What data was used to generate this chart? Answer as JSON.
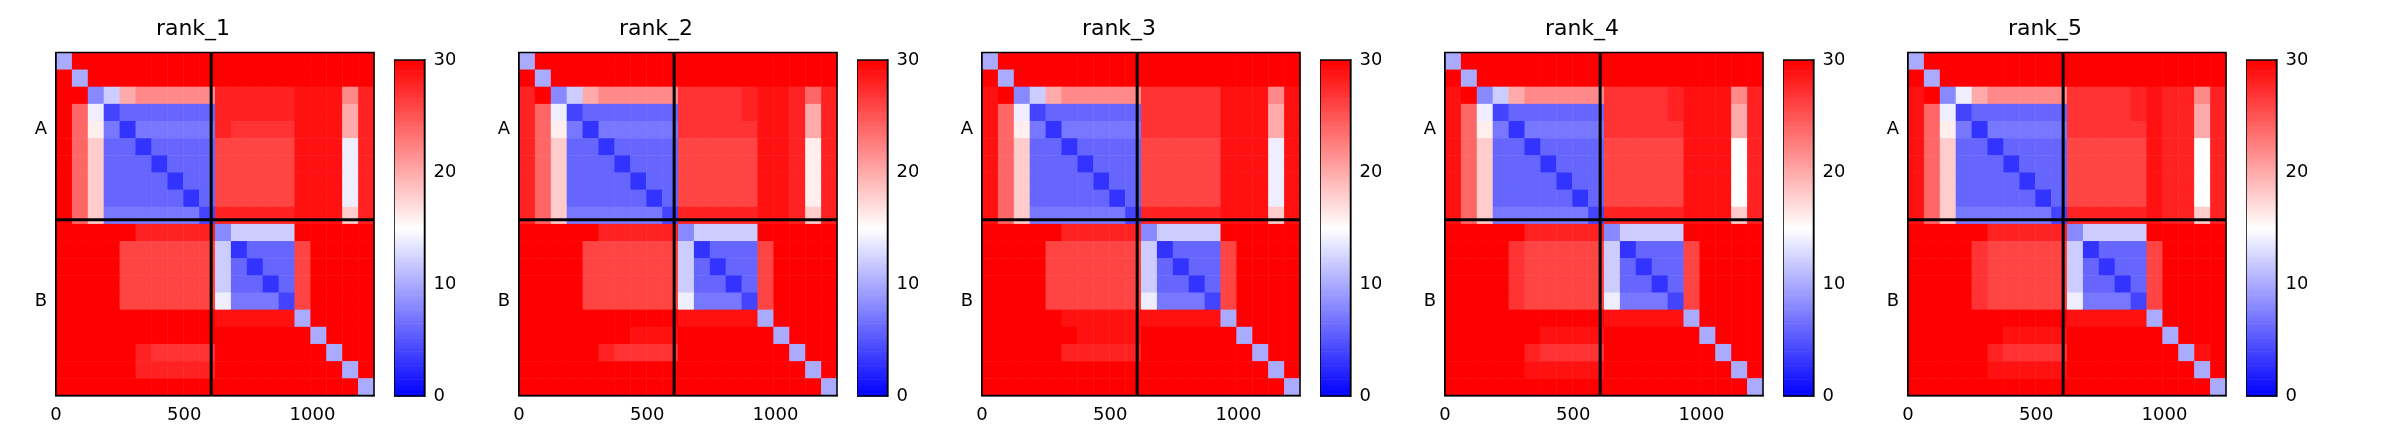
{
  "chart_data": [
    {
      "type": "heatmap",
      "title": "rank_1",
      "x": [
        31,
        93,
        155,
        217,
        279,
        341,
        403,
        465,
        527,
        589,
        651,
        713,
        775,
        837,
        899,
        961,
        1023,
        1085,
        1147,
        1209
      ],
      "xlim": [
        0,
        1240
      ],
      "xticks": [
        0,
        500,
        1000
      ],
      "y_categories": [
        null,
        null,
        null,
        null,
        "A",
        null,
        null,
        null,
        null,
        null,
        null,
        null,
        null,
        null,
        "B",
        null,
        null,
        null,
        null,
        null
      ],
      "clim": [
        0,
        30
      ],
      "cticks": [
        0,
        10,
        20,
        30
      ],
      "ref_lines": [
        {
          "axis": "x",
          "value": 605,
          "color": "#000000"
        }
      ],
      "cells": [
        [
          10,
          30,
          30,
          30,
          30,
          30,
          30,
          30,
          30,
          30,
          30,
          30,
          30,
          30,
          30,
          30,
          30,
          30,
          30,
          30
        ],
        [
          30,
          10,
          30,
          30,
          30,
          30,
          30,
          30,
          30,
          30,
          30,
          30,
          30,
          30,
          30,
          30,
          30,
          30,
          30,
          30
        ],
        [
          30,
          30,
          8,
          12,
          20,
          22,
          22,
          22,
          22,
          22,
          28,
          28,
          28,
          28,
          28,
          29,
          29,
          29,
          22,
          28
        ],
        [
          30,
          24,
          14,
          4,
          6,
          6,
          6,
          6,
          6,
          6,
          28,
          28,
          28,
          28,
          28,
          29,
          29,
          29,
          20,
          28
        ],
        [
          30,
          24,
          16,
          7,
          3,
          7,
          7,
          7,
          7,
          7,
          28,
          27,
          27,
          27,
          27,
          29,
          29,
          29,
          20,
          28
        ],
        [
          30,
          24,
          18,
          6,
          6,
          3,
          6,
          6,
          6,
          6,
          26,
          26,
          26,
          26,
          26,
          29,
          29,
          29,
          14,
          28
        ],
        [
          30,
          24,
          18,
          6,
          6,
          6,
          3,
          6,
          6,
          6,
          26,
          26,
          26,
          26,
          26,
          29,
          29,
          29,
          14,
          28
        ],
        [
          30,
          24,
          18,
          6,
          6,
          6,
          6,
          3,
          6,
          6,
          26,
          26,
          26,
          26,
          26,
          29,
          29,
          29,
          14,
          28
        ],
        [
          30,
          24,
          18,
          6,
          6,
          6,
          6,
          6,
          3,
          6,
          26,
          26,
          26,
          26,
          26,
          29,
          29,
          29,
          14,
          28
        ],
        [
          30,
          24,
          18,
          7,
          7,
          7,
          7,
          7,
          7,
          4,
          28,
          28,
          28,
          28,
          28,
          29,
          29,
          29,
          18,
          28
        ],
        [
          30,
          30,
          30,
          30,
          30,
          28,
          28,
          28,
          28,
          28,
          8,
          12,
          12,
          12,
          12,
          30,
          30,
          30,
          30,
          30
        ],
        [
          30,
          30,
          30,
          30,
          26,
          26,
          26,
          26,
          26,
          26,
          12,
          3,
          6,
          6,
          6,
          26,
          30,
          30,
          30,
          30
        ],
        [
          30,
          30,
          30,
          30,
          26,
          26,
          26,
          26,
          26,
          26,
          12,
          6,
          3,
          6,
          6,
          26,
          30,
          30,
          30,
          30
        ],
        [
          30,
          30,
          30,
          30,
          26,
          26,
          26,
          26,
          26,
          26,
          12,
          6,
          6,
          3,
          6,
          26,
          30,
          30,
          30,
          30
        ],
        [
          30,
          30,
          30,
          30,
          26,
          26,
          26,
          26,
          26,
          26,
          14,
          7,
          7,
          7,
          4,
          26,
          30,
          30,
          30,
          30
        ],
        [
          30,
          30,
          30,
          30,
          30,
          30,
          30,
          30,
          30,
          30,
          29,
          29,
          29,
          29,
          29,
          10,
          30,
          30,
          30,
          30
        ],
        [
          30,
          30,
          30,
          30,
          30,
          30,
          30,
          30,
          30,
          30,
          30,
          30,
          30,
          30,
          30,
          30,
          10,
          30,
          30,
          30
        ],
        [
          30,
          30,
          30,
          30,
          30,
          28,
          27,
          27,
          27,
          27,
          30,
          30,
          30,
          30,
          30,
          30,
          30,
          10,
          30,
          30
        ],
        [
          30,
          30,
          30,
          30,
          30,
          28,
          28,
          28,
          28,
          28,
          30,
          30,
          30,
          30,
          30,
          30,
          30,
          30,
          10,
          30
        ],
        [
          30,
          30,
          30,
          30,
          30,
          30,
          30,
          30,
          30,
          30,
          30,
          30,
          30,
          30,
          30,
          30,
          30,
          30,
          30,
          10
        ]
      ]
    },
    {
      "type": "heatmap",
      "title": "rank_2",
      "x": [
        31,
        93,
        155,
        217,
        279,
        341,
        403,
        465,
        527,
        589,
        651,
        713,
        775,
        837,
        899,
        961,
        1023,
        1085,
        1147,
        1209
      ],
      "xlim": [
        0,
        1240
      ],
      "xticks": [
        0,
        500,
        1000
      ],
      "y_categories": [
        null,
        null,
        null,
        null,
        "A",
        null,
        null,
        null,
        null,
        null,
        null,
        null,
        null,
        null,
        "B",
        null,
        null,
        null,
        null,
        null
      ],
      "clim": [
        0,
        30
      ],
      "cticks": [
        0,
        10,
        20,
        30
      ],
      "ref_lines": [
        {
          "axis": "x",
          "value": 605,
          "color": "#000000"
        }
      ],
      "cells": [
        [
          10,
          30,
          30,
          30,
          30,
          30,
          30,
          30,
          30,
          30,
          30,
          30,
          30,
          30,
          30,
          30,
          30,
          30,
          30,
          30
        ],
        [
          30,
          10,
          30,
          30,
          30,
          30,
          30,
          30,
          30,
          30,
          30,
          30,
          30,
          30,
          30,
          30,
          30,
          30,
          30,
          30
        ],
        [
          28,
          30,
          8,
          12,
          20,
          22,
          22,
          22,
          22,
          22,
          27,
          27,
          27,
          27,
          28,
          29,
          29,
          28,
          24,
          28
        ],
        [
          28,
          24,
          14,
          4,
          6,
          6,
          6,
          6,
          6,
          6,
          27,
          27,
          27,
          27,
          28,
          29,
          29,
          28,
          20,
          28
        ],
        [
          28,
          24,
          16,
          7,
          3,
          7,
          7,
          7,
          7,
          7,
          27,
          27,
          27,
          27,
          27,
          29,
          29,
          28,
          20,
          28
        ],
        [
          28,
          24,
          18,
          6,
          6,
          3,
          6,
          6,
          6,
          6,
          26,
          26,
          26,
          26,
          26,
          29,
          29,
          28,
          16,
          28
        ],
        [
          28,
          24,
          18,
          6,
          6,
          6,
          3,
          6,
          6,
          6,
          26,
          26,
          26,
          26,
          26,
          29,
          29,
          28,
          16,
          28
        ],
        [
          28,
          24,
          18,
          6,
          6,
          6,
          6,
          3,
          6,
          6,
          26,
          26,
          26,
          26,
          26,
          29,
          29,
          28,
          16,
          28
        ],
        [
          28,
          24,
          18,
          6,
          6,
          6,
          6,
          6,
          3,
          6,
          26,
          26,
          26,
          26,
          26,
          29,
          29,
          28,
          16,
          28
        ],
        [
          28,
          24,
          18,
          7,
          7,
          7,
          7,
          7,
          7,
          4,
          28,
          28,
          28,
          28,
          28,
          29,
          29,
          28,
          18,
          28
        ],
        [
          30,
          30,
          30,
          30,
          30,
          28,
          28,
          28,
          28,
          28,
          8,
          12,
          12,
          12,
          12,
          30,
          30,
          30,
          30,
          30
        ],
        [
          30,
          30,
          30,
          30,
          26,
          26,
          26,
          26,
          26,
          26,
          12,
          3,
          6,
          6,
          6,
          26,
          30,
          30,
          30,
          30
        ],
        [
          30,
          30,
          30,
          30,
          26,
          26,
          26,
          26,
          26,
          26,
          12,
          6,
          3,
          6,
          6,
          26,
          30,
          30,
          30,
          30
        ],
        [
          30,
          30,
          30,
          30,
          26,
          26,
          26,
          26,
          26,
          26,
          12,
          6,
          6,
          3,
          6,
          26,
          30,
          30,
          30,
          30
        ],
        [
          30,
          30,
          30,
          30,
          26,
          26,
          26,
          26,
          26,
          26,
          14,
          7,
          7,
          7,
          4,
          26,
          30,
          30,
          30,
          30
        ],
        [
          30,
          30,
          30,
          30,
          30,
          30,
          30,
          30,
          30,
          30,
          29,
          29,
          29,
          29,
          29,
          10,
          30,
          30,
          30,
          30
        ],
        [
          30,
          30,
          30,
          30,
          30,
          30,
          30,
          29,
          29,
          29,
          30,
          30,
          30,
          30,
          30,
          30,
          10,
          30,
          30,
          30
        ],
        [
          30,
          30,
          30,
          30,
          30,
          28,
          27,
          27,
          27,
          27,
          30,
          30,
          30,
          30,
          30,
          30,
          30,
          10,
          30,
          30
        ],
        [
          30,
          30,
          30,
          30,
          30,
          30,
          30,
          30,
          30,
          30,
          30,
          30,
          30,
          30,
          30,
          30,
          30,
          30,
          10,
          30
        ],
        [
          30,
          30,
          30,
          30,
          30,
          30,
          30,
          30,
          30,
          30,
          30,
          30,
          30,
          30,
          30,
          30,
          30,
          30,
          30,
          10
        ]
      ]
    },
    {
      "type": "heatmap",
      "title": "rank_3",
      "x": [
        31,
        93,
        155,
        217,
        279,
        341,
        403,
        465,
        527,
        589,
        651,
        713,
        775,
        837,
        899,
        961,
        1023,
        1085,
        1147,
        1209
      ],
      "xlim": [
        0,
        1240
      ],
      "xticks": [
        0,
        500,
        1000
      ],
      "y_categories": [
        null,
        null,
        null,
        null,
        "A",
        null,
        null,
        null,
        null,
        null,
        null,
        null,
        null,
        null,
        "B",
        null,
        null,
        null,
        null,
        null
      ],
      "clim": [
        0,
        30
      ],
      "cticks": [
        0,
        10,
        20,
        30
      ],
      "ref_lines": [
        {
          "axis": "x",
          "value": 605,
          "color": "#000000"
        }
      ],
      "cells": [
        [
          10,
          30,
          30,
          30,
          30,
          30,
          30,
          30,
          30,
          30,
          30,
          30,
          30,
          30,
          30,
          30,
          30,
          30,
          30,
          30
        ],
        [
          30,
          10,
          30,
          30,
          30,
          30,
          30,
          30,
          30,
          30,
          30,
          30,
          30,
          30,
          30,
          30,
          30,
          30,
          30,
          30
        ],
        [
          29,
          30,
          8,
          12,
          20,
          22,
          22,
          22,
          22,
          22,
          27,
          27,
          27,
          27,
          27,
          29,
          29,
          29,
          22,
          29
        ],
        [
          29,
          24,
          14,
          4,
          6,
          6,
          6,
          6,
          6,
          6,
          27,
          27,
          27,
          27,
          27,
          29,
          29,
          29,
          20,
          29
        ],
        [
          29,
          24,
          16,
          7,
          3,
          7,
          7,
          7,
          7,
          7,
          27,
          27,
          27,
          27,
          27,
          29,
          29,
          29,
          20,
          29
        ],
        [
          29,
          24,
          18,
          6,
          6,
          3,
          6,
          6,
          6,
          6,
          26,
          26,
          26,
          26,
          26,
          29,
          29,
          29,
          14,
          29
        ],
        [
          29,
          24,
          18,
          6,
          6,
          6,
          3,
          6,
          6,
          6,
          26,
          26,
          26,
          26,
          26,
          29,
          29,
          29,
          14,
          29
        ],
        [
          29,
          24,
          18,
          6,
          6,
          6,
          6,
          3,
          6,
          6,
          26,
          26,
          26,
          26,
          26,
          29,
          29,
          29,
          14,
          29
        ],
        [
          29,
          24,
          18,
          6,
          6,
          6,
          6,
          6,
          3,
          6,
          26,
          26,
          26,
          26,
          26,
          29,
          29,
          29,
          14,
          29
        ],
        [
          29,
          24,
          18,
          7,
          7,
          7,
          7,
          7,
          7,
          4,
          28,
          28,
          28,
          28,
          28,
          29,
          29,
          29,
          18,
          29
        ],
        [
          30,
          30,
          30,
          30,
          30,
          28,
          28,
          28,
          28,
          28,
          8,
          12,
          12,
          12,
          12,
          30,
          30,
          30,
          30,
          30
        ],
        [
          30,
          30,
          30,
          30,
          26,
          26,
          26,
          26,
          26,
          26,
          12,
          3,
          6,
          6,
          6,
          26,
          30,
          30,
          30,
          30
        ],
        [
          30,
          30,
          30,
          30,
          26,
          26,
          26,
          26,
          26,
          26,
          12,
          6,
          3,
          6,
          6,
          26,
          30,
          30,
          30,
          30
        ],
        [
          30,
          30,
          30,
          30,
          26,
          26,
          26,
          26,
          26,
          26,
          12,
          6,
          6,
          3,
          6,
          26,
          30,
          30,
          30,
          30
        ],
        [
          30,
          30,
          30,
          30,
          26,
          26,
          26,
          26,
          26,
          26,
          14,
          7,
          7,
          7,
          4,
          26,
          30,
          30,
          30,
          30
        ],
        [
          30,
          30,
          30,
          30,
          30,
          29,
          29,
          29,
          29,
          29,
          29,
          29,
          29,
          29,
          29,
          10,
          30,
          30,
          30,
          30
        ],
        [
          30,
          30,
          30,
          30,
          30,
          30,
          29,
          29,
          29,
          29,
          30,
          30,
          30,
          30,
          30,
          30,
          10,
          30,
          30,
          30
        ],
        [
          30,
          30,
          30,
          30,
          30,
          28,
          28,
          28,
          28,
          28,
          30,
          30,
          30,
          30,
          30,
          30,
          30,
          10,
          30,
          30
        ],
        [
          30,
          30,
          30,
          30,
          30,
          30,
          30,
          30,
          30,
          30,
          30,
          30,
          30,
          30,
          30,
          30,
          30,
          30,
          10,
          30
        ],
        [
          30,
          30,
          30,
          30,
          30,
          30,
          30,
          30,
          30,
          30,
          30,
          30,
          30,
          30,
          30,
          30,
          30,
          30,
          30,
          10
        ]
      ]
    },
    {
      "type": "heatmap",
      "title": "rank_4",
      "x": [
        31,
        93,
        155,
        217,
        279,
        341,
        403,
        465,
        527,
        589,
        651,
        713,
        775,
        837,
        899,
        961,
        1023,
        1085,
        1147,
        1209
      ],
      "xlim": [
        0,
        1240
      ],
      "xticks": [
        0,
        500,
        1000
      ],
      "y_categories": [
        null,
        null,
        null,
        null,
        "A",
        null,
        null,
        null,
        null,
        null,
        null,
        null,
        null,
        null,
        "B",
        null,
        null,
        null,
        null,
        null
      ],
      "clim": [
        0,
        30
      ],
      "cticks": [
        0,
        10,
        20,
        30
      ],
      "ref_lines": [
        {
          "axis": "x",
          "value": 605,
          "color": "#000000"
        }
      ],
      "cells": [
        [
          10,
          30,
          30,
          30,
          30,
          30,
          30,
          30,
          30,
          30,
          30,
          30,
          30,
          30,
          30,
          30,
          30,
          30,
          30,
          30
        ],
        [
          30,
          10,
          30,
          30,
          30,
          30,
          30,
          30,
          30,
          30,
          30,
          30,
          30,
          30,
          30,
          30,
          30,
          30,
          30,
          30
        ],
        [
          29,
          30,
          8,
          12,
          20,
          22,
          22,
          22,
          22,
          22,
          27,
          27,
          27,
          27,
          28,
          29,
          29,
          29,
          22,
          28
        ],
        [
          29,
          24,
          14,
          4,
          6,
          6,
          6,
          6,
          6,
          6,
          27,
          27,
          27,
          27,
          28,
          29,
          29,
          29,
          20,
          28
        ],
        [
          29,
          24,
          16,
          7,
          3,
          7,
          7,
          7,
          7,
          7,
          27,
          27,
          27,
          27,
          27,
          29,
          29,
          29,
          20,
          28
        ],
        [
          29,
          24,
          18,
          6,
          6,
          3,
          6,
          6,
          6,
          6,
          26,
          26,
          26,
          26,
          26,
          29,
          29,
          29,
          15,
          28
        ],
        [
          29,
          24,
          18,
          6,
          6,
          6,
          3,
          6,
          6,
          6,
          26,
          26,
          26,
          26,
          26,
          29,
          29,
          29,
          15,
          28
        ],
        [
          29,
          24,
          18,
          6,
          6,
          6,
          6,
          3,
          6,
          6,
          26,
          26,
          26,
          26,
          26,
          29,
          29,
          29,
          15,
          28
        ],
        [
          29,
          24,
          18,
          6,
          6,
          6,
          6,
          6,
          3,
          6,
          26,
          26,
          26,
          26,
          26,
          29,
          29,
          29,
          15,
          28
        ],
        [
          29,
          24,
          18,
          7,
          7,
          7,
          7,
          7,
          7,
          4,
          28,
          28,
          28,
          28,
          28,
          29,
          29,
          29,
          18,
          28
        ],
        [
          30,
          30,
          30,
          30,
          30,
          28,
          28,
          28,
          28,
          28,
          8,
          12,
          12,
          12,
          12,
          30,
          30,
          30,
          30,
          30
        ],
        [
          30,
          30,
          30,
          30,
          27,
          26,
          26,
          26,
          26,
          26,
          12,
          3,
          6,
          6,
          6,
          26,
          30,
          30,
          30,
          30
        ],
        [
          30,
          30,
          30,
          30,
          27,
          26,
          26,
          26,
          26,
          26,
          12,
          6,
          3,
          6,
          6,
          26,
          30,
          30,
          30,
          30
        ],
        [
          30,
          30,
          30,
          30,
          27,
          26,
          26,
          26,
          26,
          26,
          12,
          6,
          6,
          3,
          6,
          26,
          30,
          30,
          30,
          30
        ],
        [
          30,
          30,
          30,
          30,
          27,
          26,
          26,
          26,
          26,
          26,
          14,
          7,
          7,
          7,
          4,
          26,
          30,
          30,
          30,
          30
        ],
        [
          30,
          30,
          30,
          30,
          30,
          30,
          30,
          30,
          30,
          30,
          29,
          29,
          29,
          29,
          29,
          10,
          30,
          30,
          30,
          30
        ],
        [
          30,
          30,
          30,
          30,
          30,
          30,
          29,
          29,
          29,
          29,
          30,
          30,
          30,
          30,
          30,
          30,
          10,
          30,
          30,
          30
        ],
        [
          30,
          30,
          30,
          30,
          30,
          28,
          27,
          27,
          27,
          27,
          30,
          30,
          30,
          30,
          30,
          30,
          30,
          10,
          30,
          30
        ],
        [
          30,
          30,
          30,
          30,
          30,
          29,
          29,
          29,
          29,
          29,
          30,
          30,
          30,
          30,
          30,
          30,
          30,
          30,
          10,
          30
        ],
        [
          30,
          30,
          30,
          30,
          30,
          30,
          30,
          30,
          30,
          30,
          30,
          30,
          30,
          30,
          30,
          30,
          30,
          30,
          30,
          10
        ]
      ]
    },
    {
      "type": "heatmap",
      "title": "rank_5",
      "x": [
        31,
        93,
        155,
        217,
        279,
        341,
        403,
        465,
        527,
        589,
        651,
        713,
        775,
        837,
        899,
        961,
        1023,
        1085,
        1147,
        1209
      ],
      "xlim": [
        0,
        1240
      ],
      "xticks": [
        0,
        500,
        1000
      ],
      "y_categories": [
        null,
        null,
        null,
        null,
        "A",
        null,
        null,
        null,
        null,
        null,
        null,
        null,
        null,
        null,
        "B",
        null,
        null,
        null,
        null,
        null
      ],
      "clim": [
        0,
        30
      ],
      "cticks": [
        0,
        10,
        20,
        30
      ],
      "ref_lines": [
        {
          "axis": "x",
          "value": 605,
          "color": "#000000"
        }
      ],
      "cells": [
        [
          10,
          30,
          30,
          30,
          30,
          30,
          30,
          30,
          30,
          30,
          30,
          30,
          30,
          30,
          30,
          30,
          30,
          30,
          30,
          30
        ],
        [
          30,
          10,
          30,
          30,
          30,
          30,
          30,
          30,
          30,
          30,
          30,
          30,
          30,
          30,
          30,
          30,
          30,
          30,
          30,
          30
        ],
        [
          29,
          30,
          8,
          14,
          20,
          22,
          22,
          22,
          22,
          22,
          27,
          27,
          27,
          27,
          28,
          29,
          28,
          28,
          22,
          28
        ],
        [
          29,
          24,
          14,
          4,
          6,
          6,
          6,
          6,
          6,
          6,
          27,
          27,
          27,
          27,
          28,
          29,
          28,
          28,
          20,
          28
        ],
        [
          29,
          24,
          16,
          7,
          3,
          7,
          7,
          7,
          7,
          7,
          27,
          27,
          27,
          27,
          27,
          29,
          28,
          28,
          20,
          28
        ],
        [
          29,
          24,
          18,
          6,
          6,
          3,
          6,
          6,
          6,
          6,
          26,
          26,
          26,
          26,
          26,
          29,
          28,
          28,
          15,
          28
        ],
        [
          29,
          24,
          18,
          6,
          6,
          6,
          3,
          6,
          6,
          6,
          26,
          26,
          26,
          26,
          26,
          29,
          28,
          28,
          15,
          28
        ],
        [
          29,
          24,
          18,
          6,
          6,
          6,
          6,
          3,
          6,
          6,
          26,
          26,
          26,
          26,
          26,
          29,
          28,
          28,
          15,
          28
        ],
        [
          29,
          24,
          18,
          6,
          6,
          6,
          6,
          6,
          3,
          6,
          26,
          26,
          26,
          26,
          26,
          29,
          28,
          28,
          15,
          28
        ],
        [
          29,
          24,
          18,
          7,
          7,
          7,
          7,
          7,
          7,
          4,
          28,
          28,
          28,
          28,
          28,
          29,
          28,
          28,
          18,
          28
        ],
        [
          30,
          30,
          30,
          30,
          30,
          28,
          28,
          28,
          28,
          28,
          8,
          12,
          12,
          12,
          12,
          30,
          30,
          30,
          30,
          30
        ],
        [
          30,
          30,
          30,
          30,
          27,
          26,
          26,
          26,
          26,
          26,
          12,
          3,
          6,
          6,
          6,
          26,
          30,
          30,
          30,
          30
        ],
        [
          30,
          30,
          30,
          30,
          27,
          26,
          26,
          26,
          26,
          26,
          12,
          6,
          3,
          6,
          6,
          26,
          30,
          30,
          30,
          30
        ],
        [
          30,
          30,
          30,
          30,
          27,
          26,
          26,
          26,
          26,
          26,
          12,
          6,
          6,
          3,
          6,
          26,
          30,
          30,
          30,
          30
        ],
        [
          30,
          30,
          30,
          30,
          27,
          26,
          26,
          26,
          26,
          26,
          14,
          7,
          7,
          7,
          4,
          26,
          30,
          30,
          30,
          30
        ],
        [
          30,
          30,
          30,
          30,
          30,
          30,
          30,
          30,
          30,
          30,
          29,
          29,
          29,
          29,
          29,
          10,
          30,
          30,
          30,
          30
        ],
        [
          30,
          30,
          30,
          30,
          30,
          30,
          29,
          29,
          29,
          29,
          30,
          30,
          30,
          30,
          30,
          30,
          10,
          30,
          30,
          30
        ],
        [
          30,
          30,
          30,
          30,
          30,
          28,
          27,
          27,
          27,
          27,
          30,
          30,
          30,
          30,
          30,
          30,
          30,
          10,
          29,
          30
        ],
        [
          30,
          30,
          30,
          30,
          30,
          29,
          29,
          29,
          29,
          29,
          30,
          30,
          30,
          30,
          30,
          30,
          30,
          30,
          10,
          30
        ],
        [
          30,
          30,
          30,
          30,
          30,
          30,
          30,
          30,
          30,
          30,
          30,
          30,
          30,
          30,
          30,
          30,
          30,
          30,
          30,
          10
        ]
      ]
    }
  ]
}
